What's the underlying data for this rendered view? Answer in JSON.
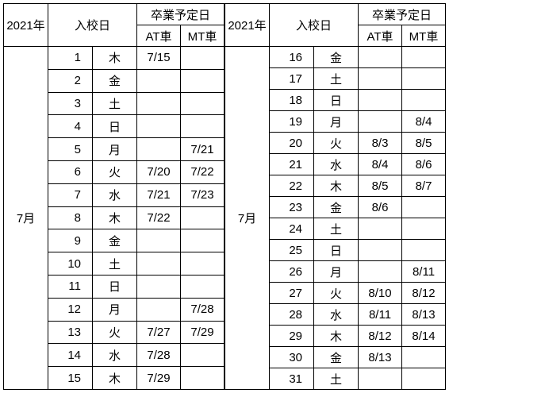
{
  "header": {
    "year": "2021年",
    "enroll": "入校日",
    "grad": "卒業予定日",
    "at": "AT車",
    "mt": "MT車"
  },
  "month_label": "7月",
  "left": {
    "rows": [
      {
        "d": "1",
        "w": "木",
        "at": "7/15",
        "mt": ""
      },
      {
        "d": "2",
        "w": "金",
        "at": "",
        "mt": ""
      },
      {
        "d": "3",
        "w": "土",
        "at": "",
        "mt": ""
      },
      {
        "d": "4",
        "w": "日",
        "at": "",
        "mt": ""
      },
      {
        "d": "5",
        "w": "月",
        "at": "",
        "mt": "7/21"
      },
      {
        "d": "6",
        "w": "火",
        "at": "7/20",
        "mt": "7/22"
      },
      {
        "d": "7",
        "w": "水",
        "at": "7/21",
        "mt": "7/23"
      },
      {
        "d": "8",
        "w": "木",
        "at": "7/22",
        "mt": ""
      },
      {
        "d": "9",
        "w": "金",
        "at": "",
        "mt": ""
      },
      {
        "d": "10",
        "w": "土",
        "at": "",
        "mt": ""
      },
      {
        "d": "11",
        "w": "日",
        "at": "",
        "mt": ""
      },
      {
        "d": "12",
        "w": "月",
        "at": "",
        "mt": "7/28"
      },
      {
        "d": "13",
        "w": "火",
        "at": "7/27",
        "mt": "7/29"
      },
      {
        "d": "14",
        "w": "水",
        "at": "7/28",
        "mt": ""
      },
      {
        "d": "15",
        "w": "木",
        "at": "7/29",
        "mt": ""
      }
    ]
  },
  "right_tbl": {
    "rows": [
      {
        "d": "16",
        "w": "金",
        "at": "",
        "mt": ""
      },
      {
        "d": "17",
        "w": "土",
        "at": "",
        "mt": ""
      },
      {
        "d": "18",
        "w": "日",
        "at": "",
        "mt": ""
      },
      {
        "d": "19",
        "w": "月",
        "at": "",
        "mt": "8/4"
      },
      {
        "d": "20",
        "w": "火",
        "at": "8/3",
        "mt": "8/5"
      },
      {
        "d": "21",
        "w": "水",
        "at": "8/4",
        "mt": "8/6"
      },
      {
        "d": "22",
        "w": "木",
        "at": "8/5",
        "mt": "8/7"
      },
      {
        "d": "23",
        "w": "金",
        "at": "8/6",
        "mt": ""
      },
      {
        "d": "24",
        "w": "土",
        "at": "",
        "mt": ""
      },
      {
        "d": "25",
        "w": "日",
        "at": "",
        "mt": ""
      },
      {
        "d": "26",
        "w": "月",
        "at": "",
        "mt": "8/11"
      },
      {
        "d": "27",
        "w": "火",
        "at": "8/10",
        "mt": "8/12"
      },
      {
        "d": "28",
        "w": "水",
        "at": "8/11",
        "mt": "8/13"
      },
      {
        "d": "29",
        "w": "木",
        "at": "8/12",
        "mt": "8/14"
      },
      {
        "d": "30",
        "w": "金",
        "at": "8/13",
        "mt": ""
      },
      {
        "d": "31",
        "w": "土",
        "at": "",
        "mt": ""
      }
    ]
  }
}
